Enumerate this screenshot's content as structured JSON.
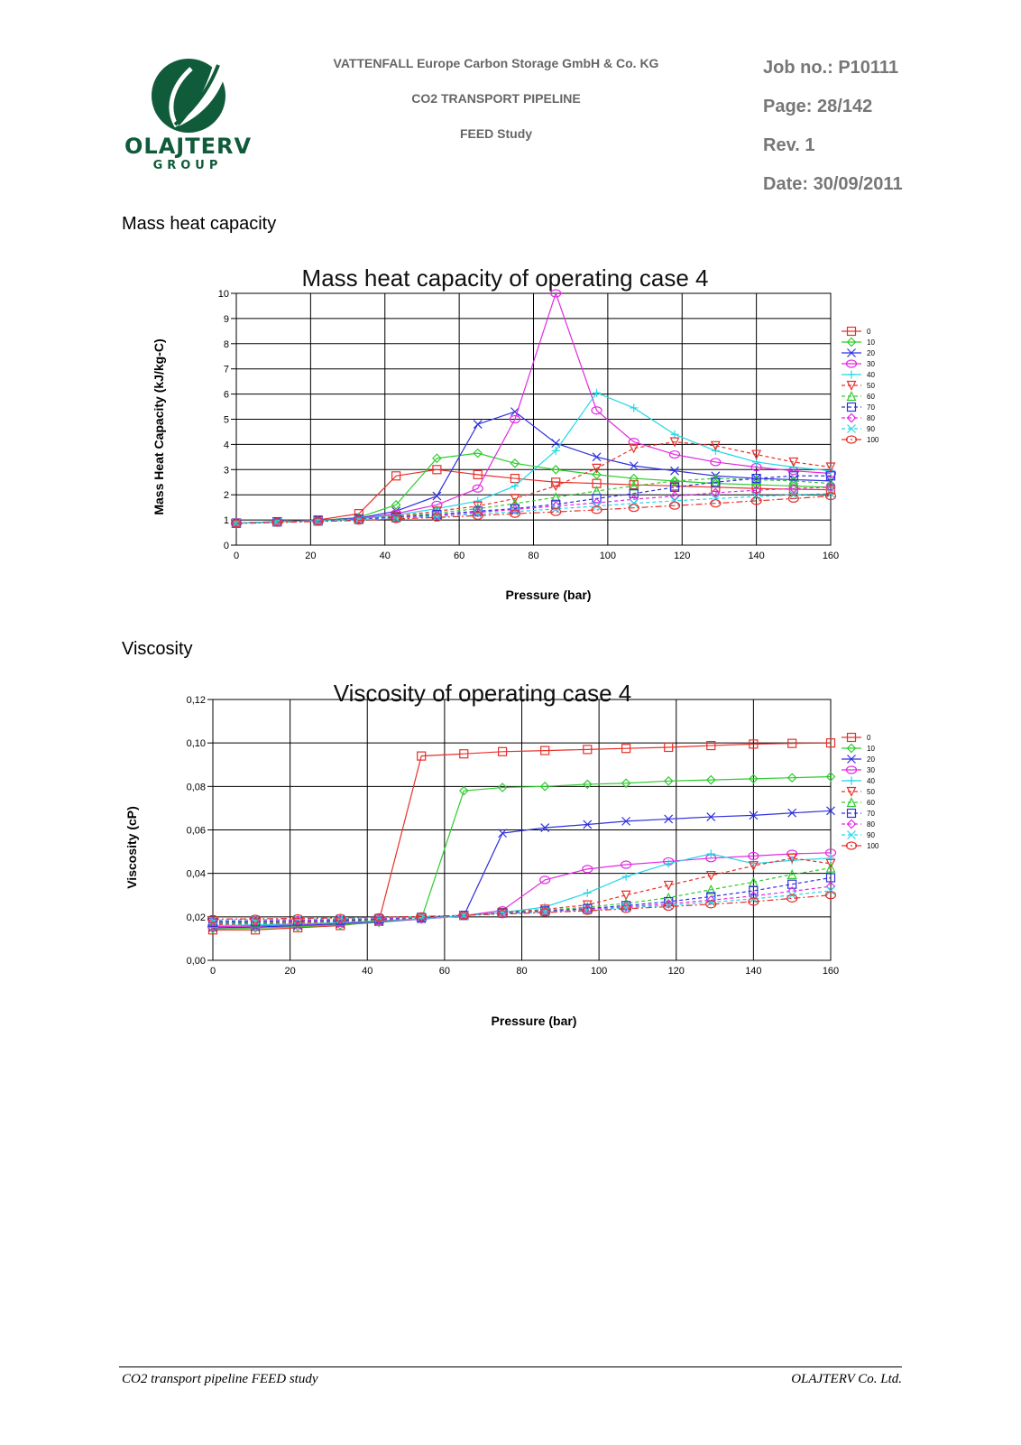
{
  "header": {
    "company": "VATTENFALL Europe Carbon Storage GmbH & Co. KG",
    "project": "CO2 TRANSPORT PIPELINE",
    "study": "FEED Study",
    "job_no": "Job no.: P10111",
    "page": "Page:  28/142",
    "rev": "Rev.    1",
    "date": "Date: 30/09/2011"
  },
  "logo": {
    "word": "OLAJTERV",
    "sub": "GROUP",
    "color": "#0f5b3a"
  },
  "sections": {
    "heat": "Mass heat capacity",
    "visc": "Viscosity"
  },
  "footer": {
    "left": "CO2 transport pipeline FEED study",
    "right": "OLAJTERV Co. Ltd."
  },
  "chart_data": [
    {
      "type": "line",
      "title": "Mass heat capacity of operating case 4",
      "xlabel": "Pressure (bar)",
      "ylabel": "Mass Heat Capacity (kJ/kg-C)",
      "xlim": [
        0,
        160
      ],
      "ylim": [
        0,
        10
      ],
      "xticks": [
        "0",
        "20",
        "40",
        "60",
        "80",
        "100",
        "120",
        "140",
        "160"
      ],
      "yticks": [
        "0",
        "1",
        "2",
        "3",
        "4",
        "5",
        "6",
        "7",
        "8",
        "9",
        "10"
      ],
      "grid": true,
      "legend_position": "right",
      "x": [
        0,
        11,
        22,
        33,
        43,
        54,
        65,
        75,
        86,
        97,
        107,
        118,
        129,
        140,
        150,
        160
      ],
      "series": [
        {
          "name": "0",
          "color": "#e8302a",
          "marker": "square",
          "dash": "solid",
          "values": [
            0.88,
            0.93,
            1.0,
            1.25,
            2.75,
            3.0,
            2.8,
            2.65,
            2.5,
            2.45,
            2.4,
            2.35,
            2.3,
            2.25,
            2.22,
            2.2
          ]
        },
        {
          "name": "10",
          "color": "#2ecc2e",
          "marker": "diamond",
          "dash": "solid",
          "values": [
            0.88,
            0.93,
            0.98,
            1.1,
            1.6,
            3.45,
            3.65,
            3.25,
            3.0,
            2.8,
            2.65,
            2.55,
            2.45,
            2.4,
            2.35,
            2.3
          ]
        },
        {
          "name": "20",
          "color": "#3030e0",
          "marker": "x",
          "dash": "solid",
          "values": [
            0.88,
            0.93,
            0.98,
            1.07,
            1.35,
            1.95,
            4.8,
            5.3,
            4.05,
            3.5,
            3.15,
            2.95,
            2.75,
            2.65,
            2.6,
            2.55
          ]
        },
        {
          "name": "30",
          "color": "#e22ae2",
          "marker": "circle",
          "dash": "solid",
          "values": [
            0.88,
            0.93,
            0.97,
            1.05,
            1.25,
            1.6,
            2.25,
            5.0,
            10.0,
            5.35,
            4.1,
            3.6,
            3.3,
            3.1,
            2.95,
            2.85
          ]
        },
        {
          "name": "40",
          "color": "#22d6e8",
          "marker": "plus",
          "dash": "solid",
          "values": [
            0.88,
            0.93,
            0.97,
            1.04,
            1.2,
            1.45,
            1.75,
            2.35,
            3.75,
            6.05,
            5.45,
            4.4,
            3.75,
            3.3,
            3.1,
            2.95
          ]
        },
        {
          "name": "50",
          "color": "#e8302a",
          "marker": "triangle-down",
          "dash": "dashed",
          "values": [
            0.87,
            0.92,
            0.96,
            1.03,
            1.15,
            1.35,
            1.55,
            1.85,
            2.35,
            3.05,
            3.85,
            4.1,
            3.95,
            3.6,
            3.3,
            3.1
          ]
        },
        {
          "name": "60",
          "color": "#2ecc2e",
          "marker": "triangle-up",
          "dash": "dashed",
          "values": [
            0.87,
            0.92,
            0.96,
            1.02,
            1.12,
            1.28,
            1.45,
            1.65,
            1.9,
            2.15,
            2.35,
            2.55,
            2.65,
            2.6,
            2.55,
            2.45
          ]
        },
        {
          "name": "70",
          "color": "#3030e0",
          "marker": "square",
          "dash": "dashed",
          "values": [
            0.87,
            0.92,
            0.96,
            1.02,
            1.1,
            1.22,
            1.35,
            1.45,
            1.62,
            1.85,
            2.05,
            2.3,
            2.5,
            2.65,
            2.75,
            2.75
          ]
        },
        {
          "name": "80",
          "color": "#e22ae2",
          "marker": "diamond",
          "dash": "dashed",
          "values": [
            0.87,
            0.91,
            0.95,
            1.0,
            1.08,
            1.18,
            1.3,
            1.42,
            1.55,
            1.68,
            1.82,
            1.95,
            2.08,
            2.18,
            2.25,
            2.3
          ]
        },
        {
          "name": "90",
          "color": "#22d6e8",
          "marker": "x",
          "dash": "dashed",
          "values": [
            0.87,
            0.91,
            0.95,
            1.0,
            1.06,
            1.14,
            1.23,
            1.33,
            1.44,
            1.55,
            1.66,
            1.76,
            1.85,
            1.93,
            2.0,
            2.05
          ]
        },
        {
          "name": "100",
          "color": "#e8302a",
          "marker": "circle",
          "dash": "dashdot",
          "values": [
            0.86,
            0.9,
            0.94,
            0.98,
            1.04,
            1.1,
            1.17,
            1.25,
            1.32,
            1.4,
            1.48,
            1.57,
            1.66,
            1.76,
            1.85,
            1.95
          ]
        }
      ]
    },
    {
      "type": "line",
      "title": "Viscosity of operating case 4",
      "xlabel": "Pressure (bar)",
      "ylabel": "Viscosity (cP)",
      "xlim": [
        0,
        160
      ],
      "ylim": [
        0,
        0.12
      ],
      "xticks": [
        "0",
        "20",
        "40",
        "60",
        "80",
        "100",
        "120",
        "140",
        "160"
      ],
      "yticks": [
        "0,00",
        "0,02",
        "0,04",
        "0,06",
        "0,08",
        "0,10",
        "0,12"
      ],
      "grid": true,
      "legend_position": "right",
      "x": [
        0,
        11,
        22,
        33,
        43,
        54,
        65,
        75,
        86,
        97,
        107,
        118,
        129,
        140,
        150,
        160
      ],
      "series": [
        {
          "name": "0",
          "color": "#e8302a",
          "marker": "square",
          "dash": "solid",
          "values": [
            0.014,
            0.014,
            0.015,
            0.016,
            0.018,
            0.094,
            0.095,
            0.096,
            0.0965,
            0.097,
            0.0975,
            0.098,
            0.0988,
            0.0995,
            0.0998,
            0.1
          ]
        },
        {
          "name": "10",
          "color": "#2ecc2e",
          "marker": "diamond",
          "dash": "solid",
          "values": [
            0.0145,
            0.0148,
            0.0155,
            0.0163,
            0.0175,
            0.019,
            0.078,
            0.0795,
            0.08,
            0.081,
            0.0815,
            0.0825,
            0.083,
            0.0835,
            0.084,
            0.0845
          ]
        },
        {
          "name": "20",
          "color": "#3030e0",
          "marker": "x",
          "dash": "solid",
          "values": [
            0.015,
            0.0153,
            0.016,
            0.0168,
            0.0178,
            0.019,
            0.0205,
            0.0585,
            0.061,
            0.0625,
            0.064,
            0.065,
            0.066,
            0.0667,
            0.0678,
            0.0688
          ]
        },
        {
          "name": "30",
          "color": "#e22ae2",
          "marker": "circle",
          "dash": "solid",
          "values": [
            0.0155,
            0.0158,
            0.0165,
            0.0172,
            0.018,
            0.019,
            0.0205,
            0.023,
            0.037,
            0.042,
            0.044,
            0.0455,
            0.047,
            0.048,
            0.049,
            0.0495
          ]
        },
        {
          "name": "40",
          "color": "#22d6e8",
          "marker": "plus",
          "dash": "solid",
          "values": [
            0.016,
            0.0163,
            0.0168,
            0.0174,
            0.0182,
            0.0192,
            0.0205,
            0.022,
            0.0245,
            0.031,
            0.0385,
            0.0445,
            0.049,
            0.0445,
            0.046,
            0.047
          ]
        },
        {
          "name": "50",
          "color": "#e8302a",
          "marker": "triangle-down",
          "dash": "dashed",
          "values": [
            0.0165,
            0.0168,
            0.0172,
            0.0178,
            0.0185,
            0.0195,
            0.0207,
            0.022,
            0.0235,
            0.0255,
            0.03,
            0.0345,
            0.039,
            0.0435,
            0.047,
            0.0445
          ]
        },
        {
          "name": "60",
          "color": "#2ecc2e",
          "marker": "triangle-up",
          "dash": "dashed",
          "values": [
            0.017,
            0.0173,
            0.0177,
            0.0182,
            0.0188,
            0.0197,
            0.0207,
            0.0218,
            0.023,
            0.0245,
            0.0262,
            0.0288,
            0.0325,
            0.036,
            0.0395,
            0.0425
          ]
        },
        {
          "name": "70",
          "color": "#3030e0",
          "marker": "square",
          "dash": "dashed",
          "values": [
            0.0175,
            0.0177,
            0.018,
            0.0184,
            0.019,
            0.0198,
            0.0207,
            0.0217,
            0.0227,
            0.0238,
            0.0252,
            0.027,
            0.0293,
            0.032,
            0.035,
            0.038
          ]
        },
        {
          "name": "80",
          "color": "#e22ae2",
          "marker": "diamond",
          "dash": "dashed",
          "values": [
            0.018,
            0.0182,
            0.0185,
            0.0188,
            0.0193,
            0.0199,
            0.0207,
            0.0215,
            0.0224,
            0.0234,
            0.0246,
            0.026,
            0.0277,
            0.0296,
            0.0318,
            0.034
          ]
        },
        {
          "name": "90",
          "color": "#22d6e8",
          "marker": "x",
          "dash": "dashed",
          "values": [
            0.0185,
            0.0187,
            0.0189,
            0.0192,
            0.0196,
            0.0201,
            0.0207,
            0.0214,
            0.0222,
            0.0231,
            0.0241,
            0.0253,
            0.0267,
            0.0283,
            0.03,
            0.032
          ]
        },
        {
          "name": "100",
          "color": "#e8302a",
          "marker": "circle",
          "dash": "dashdot",
          "values": [
            0.019,
            0.0191,
            0.0193,
            0.0195,
            0.0198,
            0.0202,
            0.0207,
            0.0213,
            0.022,
            0.0228,
            0.0237,
            0.0247,
            0.0258,
            0.027,
            0.0285,
            0.03
          ]
        }
      ]
    }
  ]
}
